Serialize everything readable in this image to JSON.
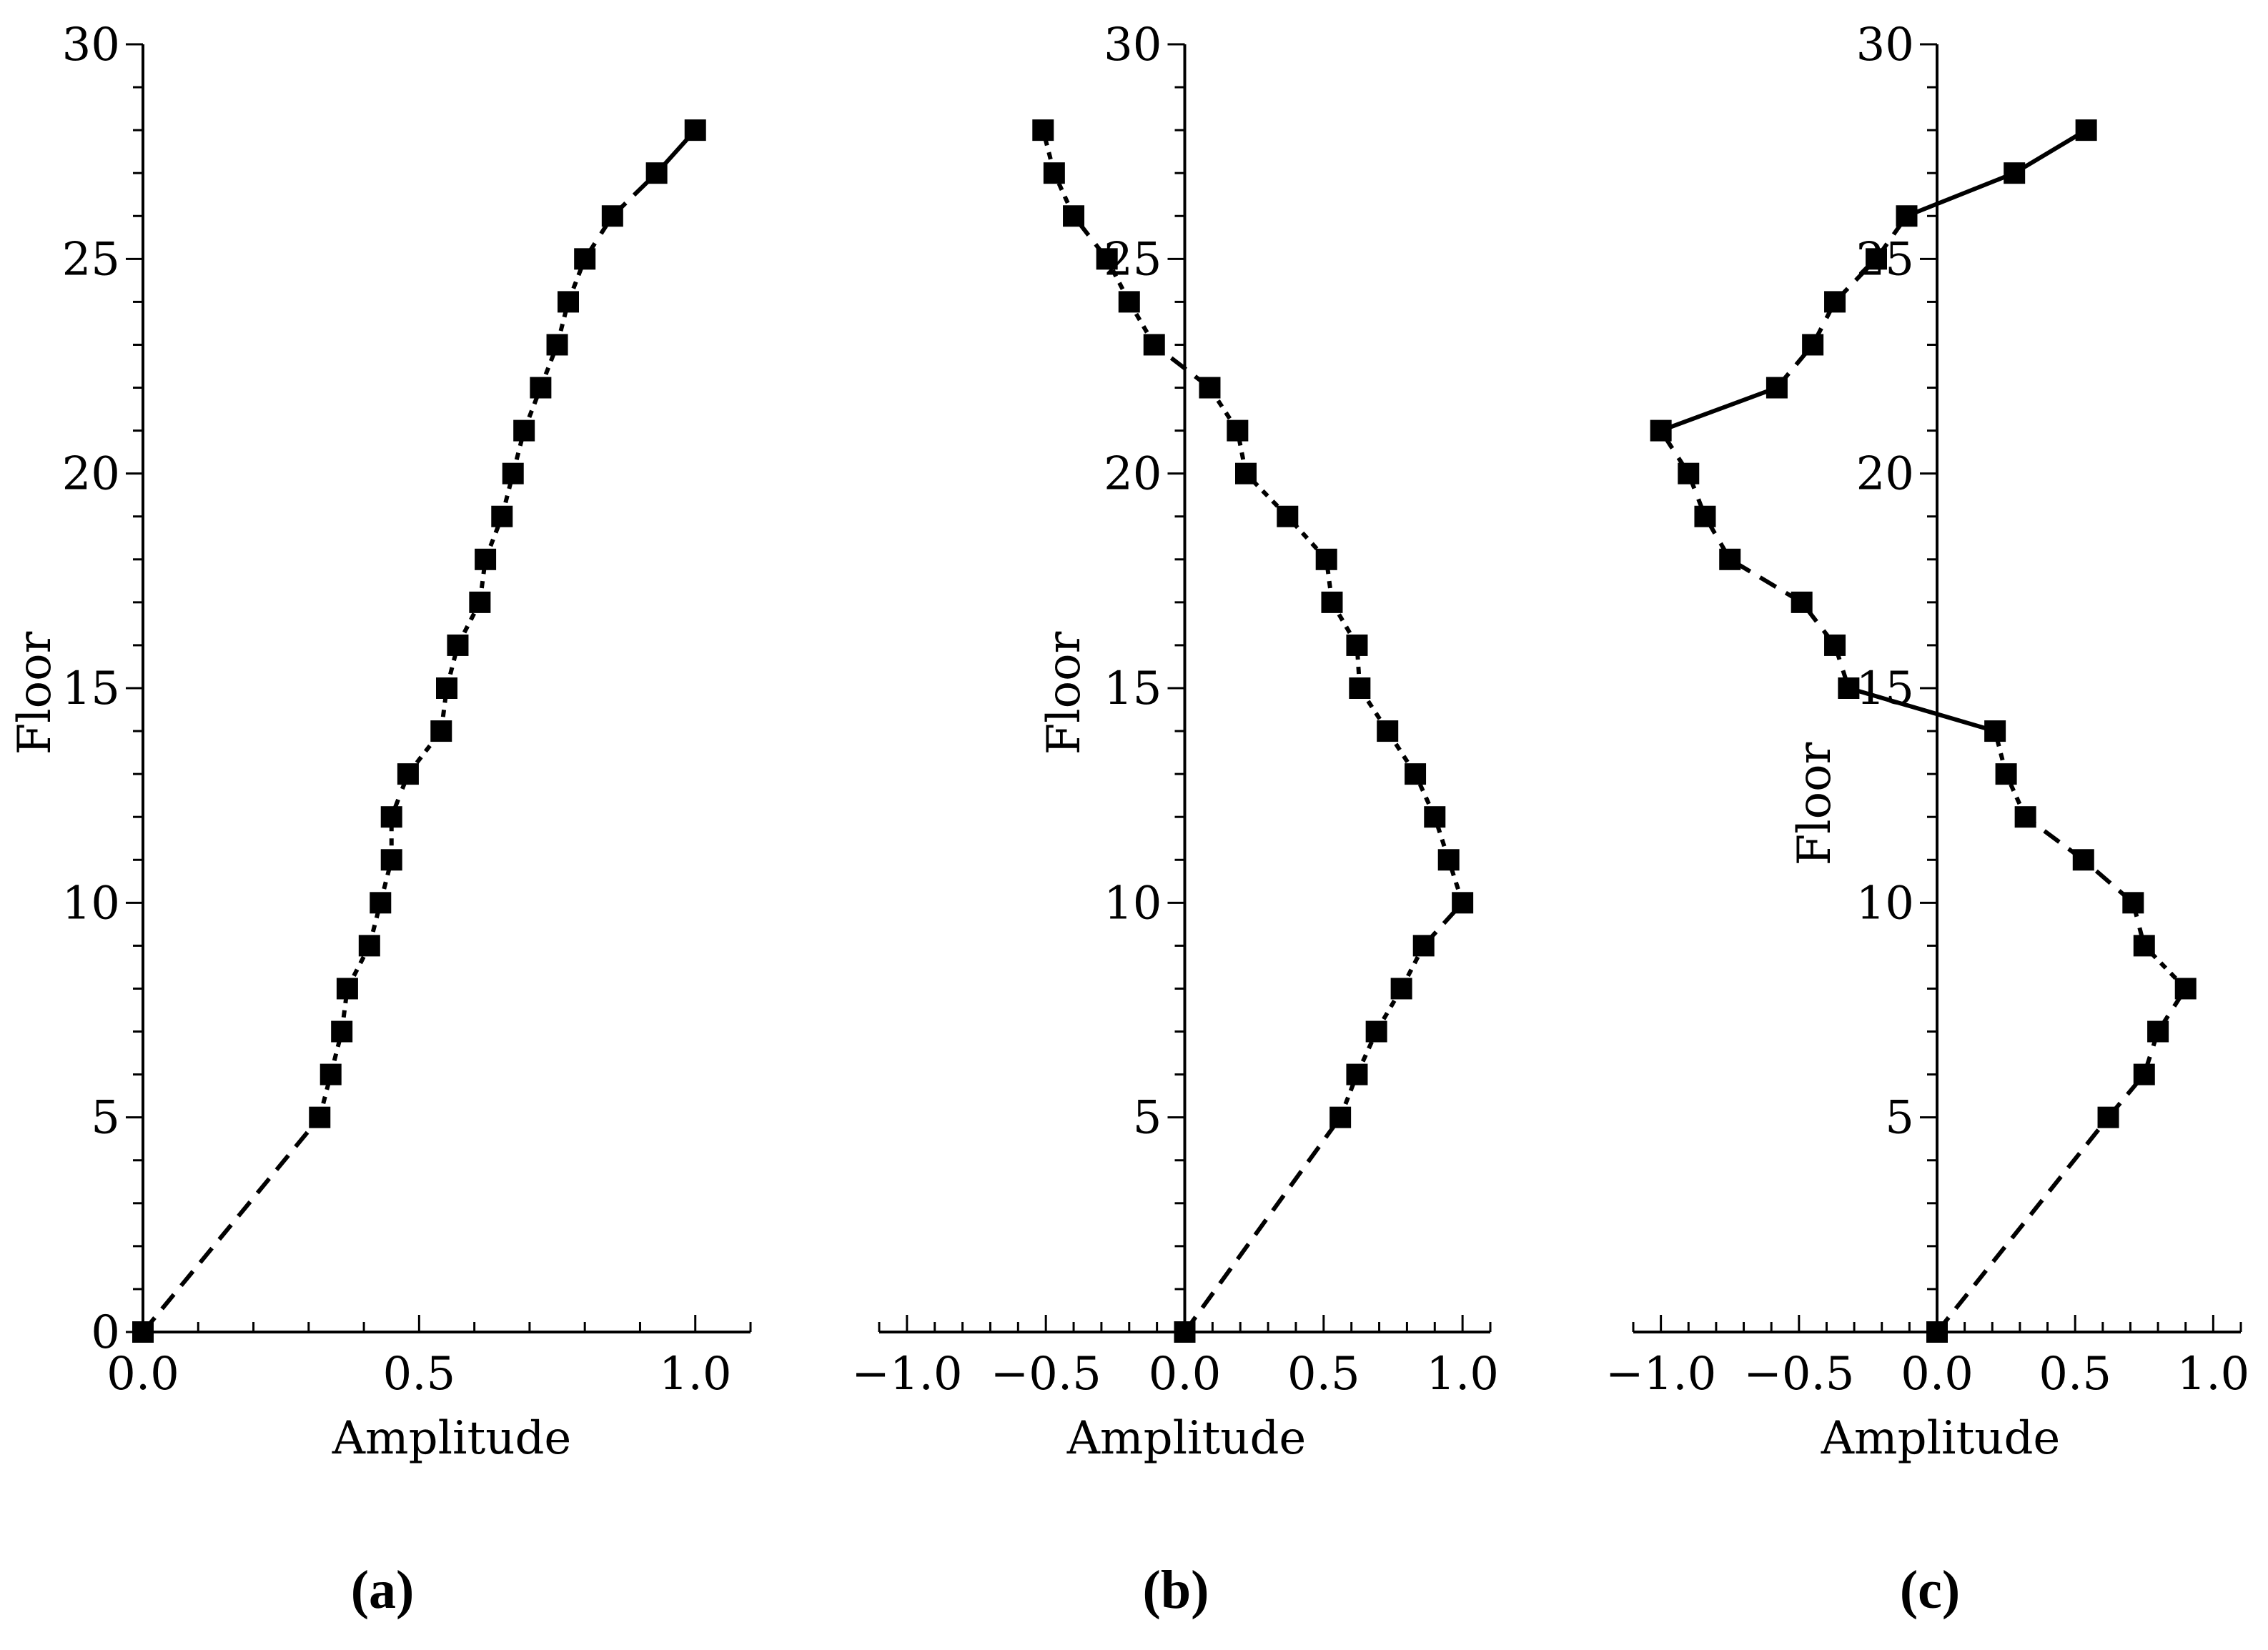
{
  "chart_data": [
    {
      "type": "line",
      "panel_label": "(a)",
      "xlabel": "Amplitude",
      "ylabel": "Floor",
      "xlim": [
        0,
        1.1
      ],
      "ylim": [
        0,
        30
      ],
      "xticks": [
        0.0,
        0.5,
        1.0
      ],
      "xtick_labels": [
        "0.0",
        "0.5",
        "1.0"
      ],
      "yticks": [
        0,
        5,
        10,
        15,
        20,
        25,
        30
      ],
      "ytick_labels": [
        "0",
        "5",
        "10",
        "15",
        "20",
        "25",
        "30"
      ],
      "grid": false,
      "marker": "square",
      "line_color": "#000000",
      "points": [
        {
          "x": 0.0,
          "y": 0,
          "style": "dashed"
        },
        {
          "x": 0.32,
          "y": 5,
          "style": "dashed"
        },
        {
          "x": 0.34,
          "y": 6,
          "style": "dotted"
        },
        {
          "x": 0.36,
          "y": 7,
          "style": "dotted"
        },
        {
          "x": 0.37,
          "y": 8,
          "style": "dotted"
        },
        {
          "x": 0.41,
          "y": 9,
          "style": "dotted"
        },
        {
          "x": 0.43,
          "y": 10,
          "style": "dotted"
        },
        {
          "x": 0.45,
          "y": 11,
          "style": "dotted"
        },
        {
          "x": 0.45,
          "y": 12,
          "style": "dotted"
        },
        {
          "x": 0.48,
          "y": 13,
          "style": "dashed"
        },
        {
          "x": 0.54,
          "y": 14,
          "style": "dotted"
        },
        {
          "x": 0.55,
          "y": 15,
          "style": "dotted"
        },
        {
          "x": 0.57,
          "y": 16,
          "style": "dotted"
        },
        {
          "x": 0.61,
          "y": 17,
          "style": "dotted"
        },
        {
          "x": 0.62,
          "y": 18,
          "style": "dotted"
        },
        {
          "x": 0.65,
          "y": 19,
          "style": "dotted"
        },
        {
          "x": 0.67,
          "y": 20,
          "style": "dotted"
        },
        {
          "x": 0.69,
          "y": 21,
          "style": "dotted"
        },
        {
          "x": 0.72,
          "y": 22,
          "style": "dotted"
        },
        {
          "x": 0.75,
          "y": 23,
          "style": "dotted"
        },
        {
          "x": 0.77,
          "y": 24,
          "style": "dotted"
        },
        {
          "x": 0.8,
          "y": 25,
          "style": "dotted"
        },
        {
          "x": 0.85,
          "y": 26,
          "style": "dashed"
        },
        {
          "x": 0.93,
          "y": 27,
          "style": "dashed"
        },
        {
          "x": 1.0,
          "y": 28,
          "style": "solid"
        }
      ]
    },
    {
      "type": "line",
      "panel_label": "(b)",
      "xlabel": "Amplitude",
      "ylabel": "Floor",
      "xlim": [
        -1.1,
        1.1
      ],
      "ylim": [
        0,
        30
      ],
      "xticks": [
        -1.0,
        -0.5,
        0.0,
        0.5,
        1.0
      ],
      "xtick_labels": [
        "-1.0",
        "-0.5",
        "0.0",
        "0.5",
        "1.0"
      ],
      "yticks": [
        5,
        10,
        15,
        20,
        25,
        30
      ],
      "ytick_labels": [
        "5",
        "10",
        "15",
        "20",
        "25",
        "30"
      ],
      "grid": false,
      "marker": "square",
      "line_color": "#000000",
      "points": [
        {
          "x": 0.0,
          "y": 0,
          "style": "dashed"
        },
        {
          "x": 0.56,
          "y": 5,
          "style": "dashed"
        },
        {
          "x": 0.62,
          "y": 6,
          "style": "dotted"
        },
        {
          "x": 0.69,
          "y": 7,
          "style": "dotted"
        },
        {
          "x": 0.78,
          "y": 8,
          "style": "dotted"
        },
        {
          "x": 0.86,
          "y": 9,
          "style": "dotted"
        },
        {
          "x": 1.0,
          "y": 10,
          "style": "dashed"
        },
        {
          "x": 0.95,
          "y": 11,
          "style": "dotted"
        },
        {
          "x": 0.9,
          "y": 12,
          "style": "dotted"
        },
        {
          "x": 0.83,
          "y": 13,
          "style": "dotted"
        },
        {
          "x": 0.73,
          "y": 14,
          "style": "dotted"
        },
        {
          "x": 0.63,
          "y": 15,
          "style": "dotted"
        },
        {
          "x": 0.62,
          "y": 16,
          "style": "dotted"
        },
        {
          "x": 0.53,
          "y": 17,
          "style": "dotted"
        },
        {
          "x": 0.51,
          "y": 18,
          "style": "dotted"
        },
        {
          "x": 0.37,
          "y": 19,
          "style": "dotted"
        },
        {
          "x": 0.22,
          "y": 20,
          "style": "dotted"
        },
        {
          "x": 0.19,
          "y": 21,
          "style": "dotted"
        },
        {
          "x": 0.09,
          "y": 22,
          "style": "dotted"
        },
        {
          "x": -0.11,
          "y": 23,
          "style": "dashed"
        },
        {
          "x": -0.2,
          "y": 24,
          "style": "dotted"
        },
        {
          "x": -0.28,
          "y": 25,
          "style": "dotted"
        },
        {
          "x": -0.4,
          "y": 26,
          "style": "dashed"
        },
        {
          "x": -0.47,
          "y": 27,
          "style": "dotted"
        },
        {
          "x": -0.51,
          "y": 28,
          "style": "dotted"
        }
      ]
    },
    {
      "type": "line",
      "panel_label": "(c)",
      "xlabel": "Amplitude",
      "ylabel": "Floor",
      "xlim": [
        -1.1,
        1.1
      ],
      "ylim": [
        0,
        30
      ],
      "xticks": [
        -1.0,
        -0.5,
        0.0,
        0.5,
        1.0
      ],
      "xtick_labels": [
        "-1.0",
        "-0.5",
        "0.0",
        "0.5",
        "1.0"
      ],
      "yticks": [
        5,
        10,
        15,
        20,
        25,
        30
      ],
      "ytick_labels": [
        "5",
        "10",
        "15",
        "20",
        "25",
        "30"
      ],
      "grid": false,
      "marker": "square",
      "line_color": "#000000",
      "points": [
        {
          "x": 0.0,
          "y": 0,
          "style": "dashed"
        },
        {
          "x": 0.62,
          "y": 5,
          "style": "dashed"
        },
        {
          "x": 0.75,
          "y": 6,
          "style": "dashed"
        },
        {
          "x": 0.8,
          "y": 7,
          "style": "dashed"
        },
        {
          "x": 0.9,
          "y": 8,
          "style": "dashed"
        },
        {
          "x": 0.75,
          "y": 9,
          "style": "dotted"
        },
        {
          "x": 0.71,
          "y": 10,
          "style": "dashed"
        },
        {
          "x": 0.53,
          "y": 11,
          "style": "dashed"
        },
        {
          "x": 0.32,
          "y": 12,
          "style": "dashed"
        },
        {
          "x": 0.25,
          "y": 13,
          "style": "dotted"
        },
        {
          "x": 0.21,
          "y": 14,
          "style": "dotted"
        },
        {
          "x": -0.32,
          "y": 15,
          "style": "solid"
        },
        {
          "x": -0.37,
          "y": 16,
          "style": "dashed"
        },
        {
          "x": -0.49,
          "y": 17,
          "style": "dashed"
        },
        {
          "x": -0.75,
          "y": 18,
          "style": "dashed"
        },
        {
          "x": -0.84,
          "y": 19,
          "style": "dashed"
        },
        {
          "x": -0.9,
          "y": 20,
          "style": "dashed"
        },
        {
          "x": -1.0,
          "y": 21,
          "style": "dashed"
        },
        {
          "x": -0.58,
          "y": 22,
          "style": "solid"
        },
        {
          "x": -0.45,
          "y": 23,
          "style": "dashed"
        },
        {
          "x": -0.37,
          "y": 24,
          "style": "dashed"
        },
        {
          "x": -0.22,
          "y": 25,
          "style": "dashed"
        },
        {
          "x": -0.11,
          "y": 26,
          "style": "dashed"
        },
        {
          "x": 0.28,
          "y": 27,
          "style": "solid"
        },
        {
          "x": 0.54,
          "y": 28,
          "style": "solid"
        }
      ]
    }
  ]
}
